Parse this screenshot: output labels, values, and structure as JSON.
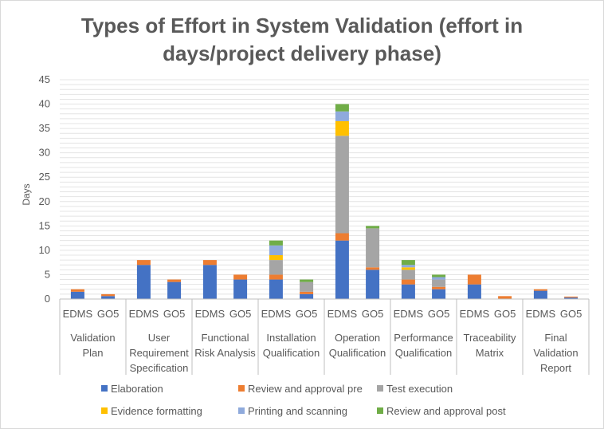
{
  "chart_data": {
    "type": "bar",
    "stacked": true,
    "title_lines": [
      "Types of Effort in System Validation (effort in",
      "days/project delivery phase)"
    ],
    "ylabel": "Days",
    "ylim": [
      0,
      45
    ],
    "yticks": [
      0,
      5,
      10,
      15,
      20,
      25,
      30,
      35,
      40,
      45
    ],
    "grid": true,
    "legend_position": "bottom",
    "groups": [
      {
        "label_lines": [
          "Validation",
          "Plan"
        ],
        "bars": [
          "EDMS",
          "GO5"
        ]
      },
      {
        "label_lines": [
          "User",
          "Requirement",
          "Specification"
        ],
        "bars": [
          "EDMS",
          "GO5"
        ]
      },
      {
        "label_lines": [
          "Functional",
          "Risk Analysis"
        ],
        "bars": [
          "EDMS",
          "GO5"
        ]
      },
      {
        "label_lines": [
          "Installation",
          "Qualification"
        ],
        "bars": [
          "EDMS",
          "GO5"
        ]
      },
      {
        "label_lines": [
          "Operation",
          "Qualification"
        ],
        "bars": [
          "EDMS",
          "GO5"
        ]
      },
      {
        "label_lines": [
          "Performance",
          "Qualification"
        ],
        "bars": [
          "EDMS",
          "GO5"
        ]
      },
      {
        "label_lines": [
          "Traceability",
          "Matrix"
        ],
        "bars": [
          "EDMS",
          "GO5"
        ]
      },
      {
        "label_lines": [
          "Final",
          "Validation",
          "Report"
        ],
        "bars": [
          "EDMS",
          "GO5"
        ]
      }
    ],
    "series": [
      {
        "name": "Elaboration",
        "color": "#4472c4",
        "values": [
          1.5,
          0.6,
          7,
          3.5,
          7,
          4,
          4,
          1,
          12,
          6,
          3,
          2,
          3,
          0,
          1.7,
          0.3
        ]
      },
      {
        "name": "Review and approval pre",
        "color": "#ed7d31",
        "values": [
          0.5,
          0.4,
          1,
          0.5,
          1,
          1,
          1,
          0.5,
          1.5,
          0.5,
          1,
          0.5,
          2,
          0.6,
          0.3,
          0.2
        ]
      },
      {
        "name": "Test execution",
        "color": "#a5a5a5",
        "values": [
          0,
          0,
          0,
          0,
          0,
          0,
          3,
          2,
          20,
          8,
          2,
          1.5,
          0,
          0,
          0,
          0
        ]
      },
      {
        "name": "Evidence formatting",
        "color": "#ffc000",
        "values": [
          0,
          0,
          0,
          0,
          0,
          0,
          1,
          0,
          3,
          0,
          0.5,
          0,
          0,
          0,
          0,
          0
        ]
      },
      {
        "name": "Printing and scanning",
        "color": "#8faadc",
        "values": [
          0,
          0,
          0,
          0,
          0,
          0,
          2,
          0,
          2,
          0,
          0.5,
          0.5,
          0,
          0,
          0,
          0
        ]
      },
      {
        "name": "Review and approval post",
        "color": "#70ad47",
        "values": [
          0,
          0,
          0,
          0,
          0,
          0,
          1,
          0.5,
          1.5,
          0.5,
          1,
          0.5,
          0,
          0,
          0,
          0
        ]
      }
    ]
  },
  "colors": {
    "title": "#595959",
    "text": "#595959",
    "grid": "#e4e4e4",
    "axis": "#bfbfbf"
  }
}
